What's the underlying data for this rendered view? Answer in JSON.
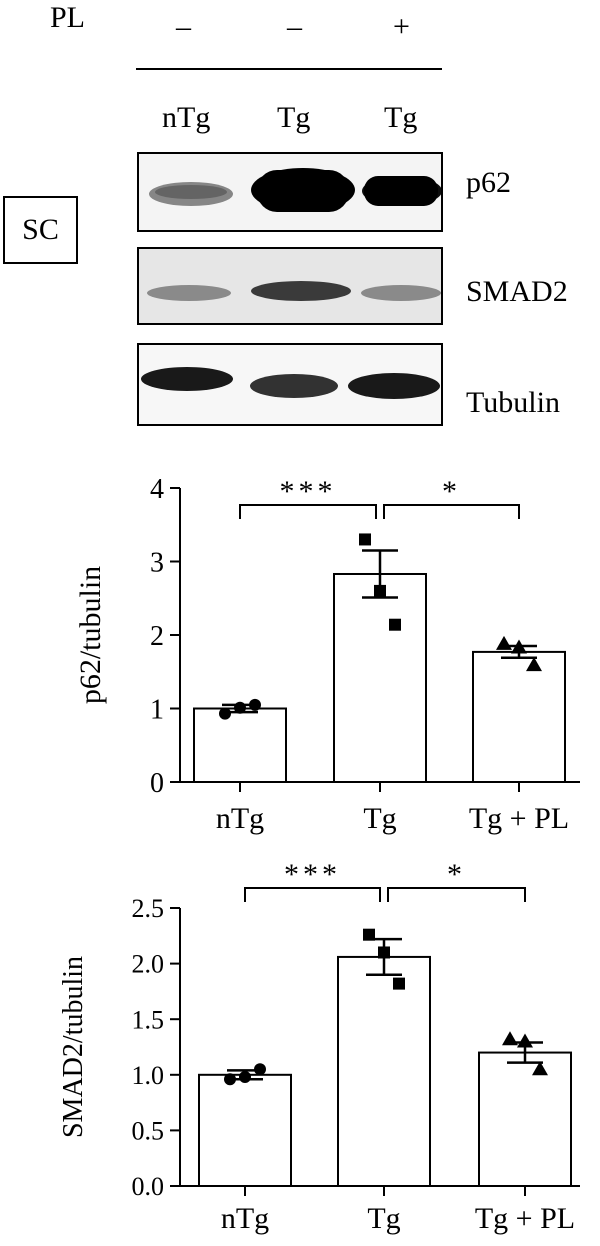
{
  "treatment_row": {
    "label": "PL",
    "values": [
      "–",
      "–",
      "+"
    ]
  },
  "lane_labels": [
    "nTg",
    "Tg",
    "Tg"
  ],
  "tissue_label": "SC",
  "blots": [
    {
      "name": "p62",
      "band_intensity": [
        0.35,
        1.0,
        0.85
      ]
    },
    {
      "name": "SMAD2",
      "band_intensity": [
        0.3,
        0.55,
        0.3
      ]
    },
    {
      "name": "Tubulin",
      "band_intensity": [
        0.9,
        0.8,
        0.85
      ]
    }
  ],
  "colors": {
    "ink": "#000000",
    "bar_fill": "#ffffff",
    "band": "#000000"
  },
  "chart_data": [
    {
      "type": "bar",
      "ylabel": "p62/tubulin",
      "xlabel": "",
      "ylim": [
        0,
        4
      ],
      "yticks": [
        "0",
        "1",
        "2",
        "3",
        "4"
      ],
      "categories": [
        "nTg",
        "Tg",
        "Tg + PL"
      ],
      "values": [
        1.0,
        2.83,
        1.77
      ],
      "sem": [
        0.05,
        0.32,
        0.08
      ],
      "points": [
        [
          0.93,
          1.01,
          1.05
        ],
        [
          3.3,
          2.6,
          2.14
        ],
        [
          1.88,
          1.83,
          1.59
        ]
      ],
      "markers": [
        "circle",
        "square",
        "triangle"
      ],
      "significance": [
        {
          "from": 0,
          "to": 1,
          "label": "***"
        },
        {
          "from": 1,
          "to": 2,
          "label": "*"
        }
      ]
    },
    {
      "type": "bar",
      "ylabel": "SMAD2/tubulin",
      "xlabel": "",
      "ylim": [
        0,
        2.5
      ],
      "yticks": [
        "0.0",
        "0.5",
        "1.0",
        "1.5",
        "2.0",
        "2.5"
      ],
      "categories": [
        "nTg",
        "Tg",
        "Tg + PL"
      ],
      "values": [
        1.0,
        2.06,
        1.2
      ],
      "sem": [
        0.04,
        0.16,
        0.09
      ],
      "points": [
        [
          0.96,
          0.98,
          1.05
        ],
        [
          2.26,
          2.1,
          1.82
        ],
        [
          1.32,
          1.3,
          1.05
        ]
      ],
      "markers": [
        "circle",
        "square",
        "triangle"
      ],
      "significance": [
        {
          "from": 0,
          "to": 1,
          "label": "***"
        },
        {
          "from": 1,
          "to": 2,
          "label": "*"
        }
      ]
    }
  ]
}
